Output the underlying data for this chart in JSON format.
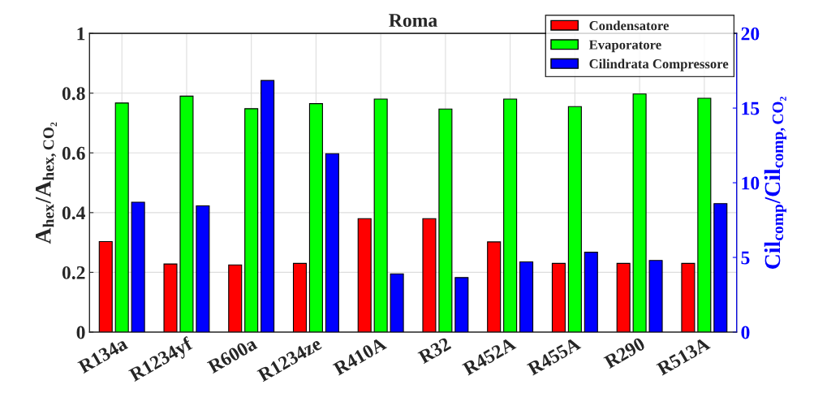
{
  "chart_data": {
    "type": "bar",
    "title": "Roma",
    "categories": [
      "R134a",
      "R1234yf",
      "R600a",
      "R1234ze",
      "R410A",
      "R32",
      "R452A",
      "R455A",
      "R290",
      "R513A"
    ],
    "series": [
      {
        "name": "Condensatore",
        "color": "#ff0000",
        "values": [
          0.303,
          0.228,
          0.225,
          0.23,
          0.38,
          0.38,
          0.302,
          0.23,
          0.23,
          0.23
        ]
      },
      {
        "name": "Evaporatore",
        "color": "#00ff00",
        "values": [
          0.767,
          0.79,
          0.748,
          0.765,
          0.78,
          0.747,
          0.78,
          0.755,
          0.797,
          0.783
        ]
      },
      {
        "name": "Cilindrata Compressore",
        "color": "#0000ff",
        "axis": "y2",
        "values": [
          8.7,
          8.45,
          16.85,
          11.95,
          3.9,
          3.65,
          4.7,
          5.35,
          4.8,
          8.6
        ]
      }
    ],
    "ylabel": "A$_{hex}$/A$_{hex,CO₂}$",
    "y2label": "Cil$_{comp}$/Cil$_{comp,CO₂}$",
    "ylim": [
      0,
      1
    ],
    "yticks": [
      0,
      0.2,
      0.4,
      0.6,
      0.8,
      1
    ],
    "y2lim": [
      0,
      20
    ],
    "y2ticks": [
      0,
      5,
      10,
      15,
      20
    ],
    "grid": true,
    "legend": "top right"
  }
}
